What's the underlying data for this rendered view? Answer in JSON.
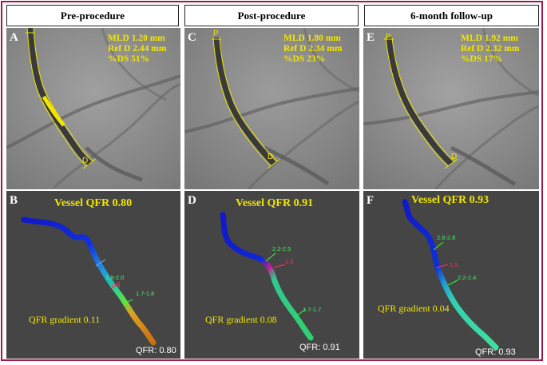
{
  "columns": [
    {
      "header": "Pre-procedure",
      "angio": {
        "letter": "A",
        "mld": "MLD 1.20 mm",
        "refd": "Ref D 2.44 mm",
        "ds": "%DS 51%",
        "proximal": "P",
        "distal": "D"
      },
      "qfr": {
        "letter": "B",
        "vessel_qfr": "Vessel QFR 0.80",
        "gradient": "QFR gradient 0.11",
        "value": "QFR: 0.80",
        "segments": [
          "1.8-2.0",
          "0.9",
          "1.7-1.8"
        ]
      }
    },
    {
      "header": "Post-procedure",
      "angio": {
        "letter": "C",
        "mld": "MLD 1.80 mm",
        "refd": "Ref D 2.34 mm",
        "ds": "%DS 23%",
        "proximal": "P",
        "distal": "D"
      },
      "qfr": {
        "letter": "D",
        "vessel_qfr": "Vessel QFR 0.91",
        "gradient": "QFR gradient 0.08",
        "value": "QFR: 0.91",
        "segments": [
          "2.2-2.5",
          "1.5",
          "1.7-1.7"
        ]
      }
    },
    {
      "header": "6-month follow-up",
      "angio": {
        "letter": "E",
        "mld": "MLD 1.92 mm",
        "refd": "Ref D 2.32 mm",
        "ds": "%DS 17%",
        "proximal": "P",
        "distal": "D"
      },
      "qfr": {
        "letter": "F",
        "vessel_qfr": "Vessel QFR 0.93",
        "gradient": "QFR gradient 0.04",
        "value": "QFR: 0.93",
        "segments": [
          "2.6-2.8",
          "1.5",
          "2.2-2.4"
        ]
      }
    }
  ],
  "colors": {
    "border": "#a3164a",
    "annotation": "#f2e600",
    "qfr_background": "#454545",
    "angio_background": "#8f8f8f"
  }
}
